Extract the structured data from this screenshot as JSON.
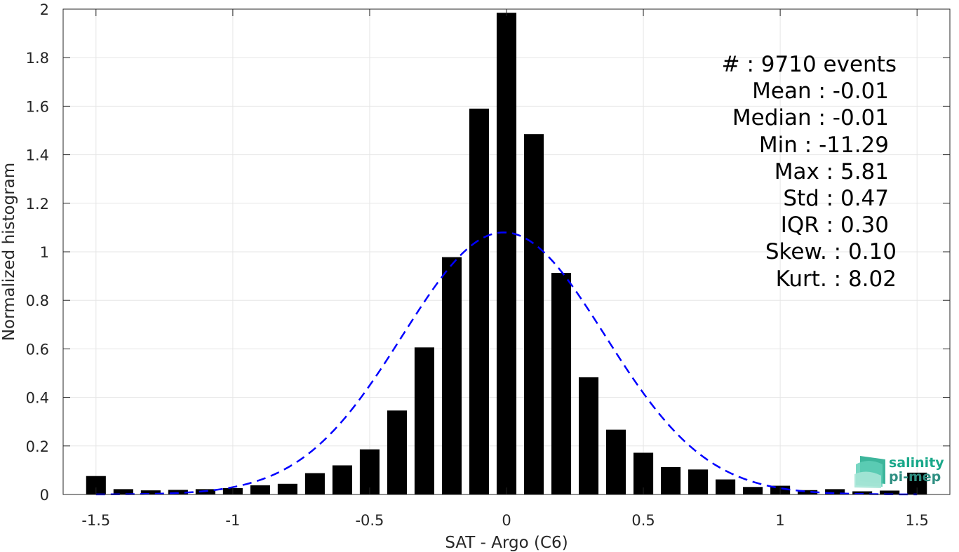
{
  "chart_data": {
    "type": "bar",
    "xlabel": "SAT - Argo (C6)",
    "ylabel": "Normalized histogram",
    "xlim": [
      -1.62,
      1.62
    ],
    "ylim": [
      0,
      2
    ],
    "grid": true,
    "x_ticks": [
      "-1.5",
      "-1",
      "-0.5",
      "0",
      "0.5",
      "1",
      "1.5"
    ],
    "x_tick_values": [
      -1.5,
      -1,
      -0.5,
      0,
      0.5,
      1,
      1.5
    ],
    "y_ticks": [
      "0",
      "0.2",
      "0.4",
      "0.6",
      "0.8",
      "1",
      "1.2",
      "1.4",
      "1.6",
      "1.8",
      "2"
    ],
    "y_tick_values": [
      0,
      0.2,
      0.4,
      0.6,
      0.8,
      1,
      1.2,
      1.4,
      1.6,
      1.8,
      2
    ],
    "bar_color": "#000000",
    "bins": [
      -1.5,
      -1.4,
      -1.3,
      -1.2,
      -1.1,
      -1.0,
      -0.9,
      -0.8,
      -0.7,
      -0.6,
      -0.5,
      -0.4,
      -0.3,
      -0.2,
      -0.1,
      0.0,
      0.1,
      0.2,
      0.3,
      0.4,
      0.5,
      0.6,
      0.7,
      0.8,
      0.9,
      1.0,
      1.1,
      1.2,
      1.3,
      1.4,
      1.5
    ],
    "values": [
      0.076,
      0.022,
      0.017,
      0.019,
      0.022,
      0.026,
      0.038,
      0.044,
      0.088,
      0.12,
      0.186,
      0.346,
      0.606,
      0.978,
      1.59,
      1.985,
      1.485,
      0.913,
      0.483,
      0.267,
      0.172,
      0.113,
      0.103,
      0.062,
      0.031,
      0.036,
      0.018,
      0.022,
      0.013,
      0.016,
      0.09
    ],
    "fit_curve": {
      "type": "normal",
      "mean": -0.01,
      "std": 0.37,
      "peak": 1.08,
      "color": "#0000ff",
      "style": "dashed"
    }
  },
  "stats": {
    "count": "#  : 9710 events",
    "mean": "Mean : -0.01",
    "median": "Median : -0.01",
    "min": "Min : -11.29",
    "max": "Max : 5.81",
    "std": "Std : 0.47",
    "iqr": "IQR : 0.30",
    "skew": "Skew. : 0.10",
    "kurt": "Kurt. : 8.02"
  },
  "logo": {
    "line1": "salinity",
    "line2": "pi-mep",
    "color_line1": "#1aa88a",
    "color_line2": "#2f8f82"
  }
}
